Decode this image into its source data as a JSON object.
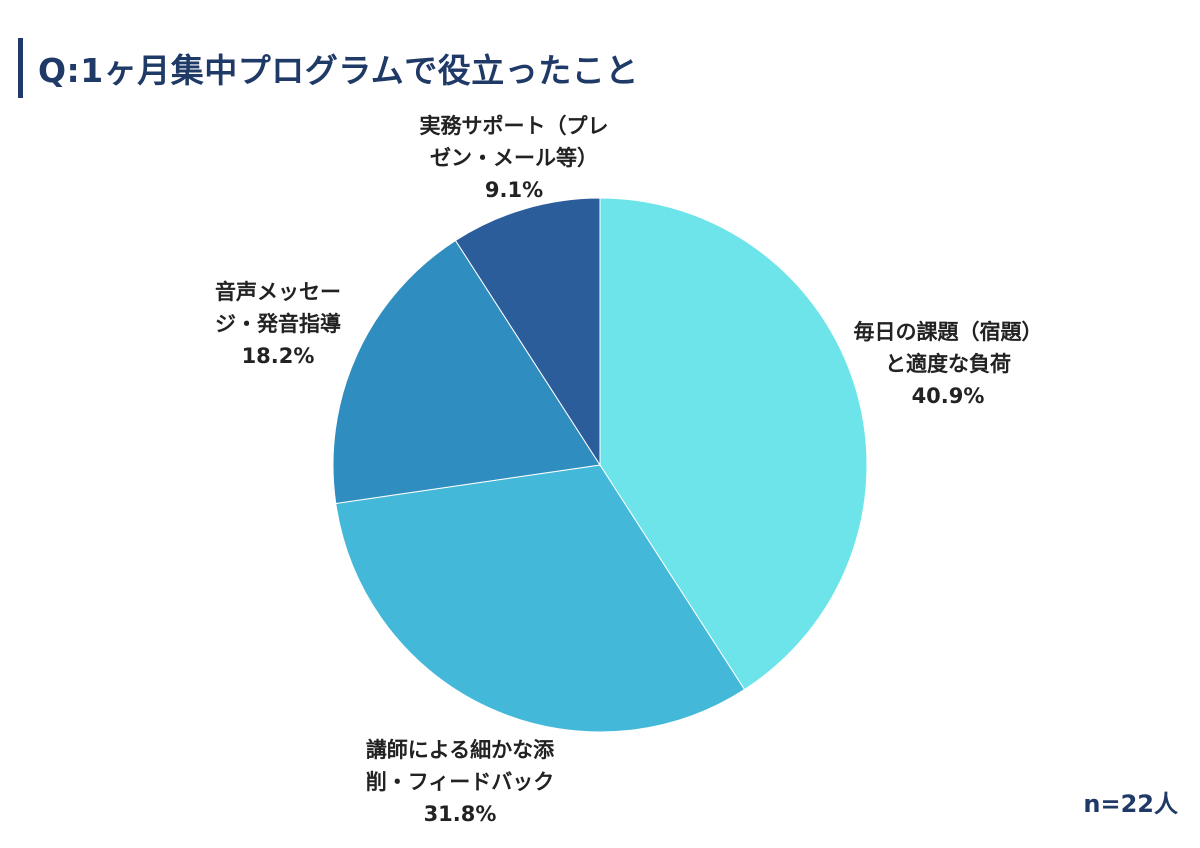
{
  "title": "Q:1ヶ月集中プログラムで役立ったこと",
  "sample_size": "n=22人",
  "chart_data": {
    "type": "pie",
    "title": "Q:1ヶ月集中プログラムで役立ったこと",
    "start_angle_deg": 0,
    "direction": "clockwise",
    "slices": [
      {
        "label_lines": [
          "毎日の課題（宿題）",
          "と適度な負荷"
        ],
        "percent_text": "40.9%",
        "value": 40.9,
        "color": "#6de4ea"
      },
      {
        "label_lines": [
          "講師による細かな添",
          "削・フィードバック"
        ],
        "percent_text": "31.8%",
        "value": 31.8,
        "color": "#44b8d8"
      },
      {
        "label_lines": [
          "音声メッセー",
          "ジ・発音指導"
        ],
        "percent_text": "18.2%",
        "value": 18.2,
        "color": "#308dbf"
      },
      {
        "label_lines": [
          "実務サポート（プレ",
          "ゼン・メール等）"
        ],
        "percent_text": "9.1%",
        "value": 9.1,
        "color": "#2b5d9b"
      }
    ]
  }
}
